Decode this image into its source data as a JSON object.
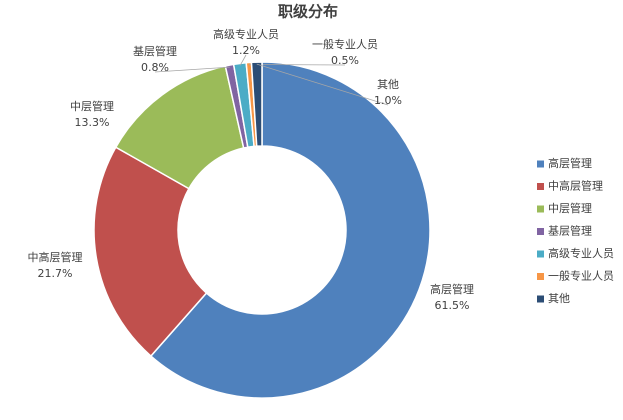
{
  "chart_data": {
    "type": "donut",
    "title": "职级分布",
    "categories": [
      "高层管理",
      "中高层管理",
      "中层管理",
      "基层管理",
      "高级专业人员",
      "一般专业人员",
      "其他"
    ],
    "values": [
      61.5,
      21.7,
      13.3,
      0.8,
      1.2,
      0.5,
      1.0
    ],
    "value_labels": [
      "61.5%",
      "21.7%",
      "13.3%",
      "0.8%",
      "1.2%",
      "0.5%",
      "1.0%"
    ],
    "colors": [
      "#4f81bd",
      "#c0504d",
      "#9bbb59",
      "#8064a2",
      "#4bacc6",
      "#f79646",
      "#2c4d75"
    ],
    "legend": "right"
  }
}
